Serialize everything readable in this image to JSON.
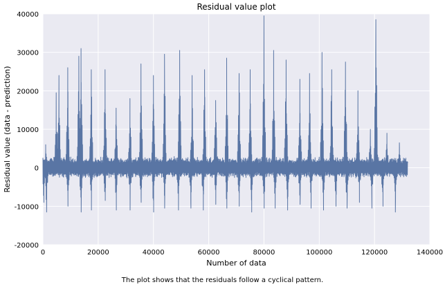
{
  "chart_data": {
    "type": "line",
    "title": "Residual value plot",
    "xlabel": "Number of data",
    "ylabel": "Residual value (data - prediction)",
    "xlim": [
      0,
      140000
    ],
    "ylim": [
      -20000,
      40000
    ],
    "xticks": [
      0,
      20000,
      40000,
      60000,
      80000,
      100000,
      120000,
      140000
    ],
    "yticks": [
      -20000,
      -10000,
      0,
      10000,
      20000,
      30000,
      40000
    ],
    "grid": true,
    "line_color": "#5975a4",
    "background_color": "#eaeaf2",
    "n_points": 132000,
    "peaks": [
      {
        "x": 1000,
        "y": 6000
      },
      {
        "x": 4800,
        "y": 19500
      },
      {
        "x": 5800,
        "y": 24000
      },
      {
        "x": 9000,
        "y": 26000
      },
      {
        "x": 13000,
        "y": 29000
      },
      {
        "x": 13800,
        "y": 31000
      },
      {
        "x": 17500,
        "y": 25500
      },
      {
        "x": 22500,
        "y": 25500
      },
      {
        "x": 26500,
        "y": 15500
      },
      {
        "x": 31500,
        "y": 18000
      },
      {
        "x": 35500,
        "y": 27000
      },
      {
        "x": 40000,
        "y": 24000
      },
      {
        "x": 44000,
        "y": 29500
      },
      {
        "x": 49500,
        "y": 30500
      },
      {
        "x": 54000,
        "y": 24000
      },
      {
        "x": 58500,
        "y": 25500
      },
      {
        "x": 62500,
        "y": 17500
      },
      {
        "x": 66500,
        "y": 28500
      },
      {
        "x": 71000,
        "y": 24500
      },
      {
        "x": 75000,
        "y": 25500
      },
      {
        "x": 80000,
        "y": 39500
      },
      {
        "x": 83500,
        "y": 30500
      },
      {
        "x": 88000,
        "y": 28000
      },
      {
        "x": 93000,
        "y": 23000
      },
      {
        "x": 96500,
        "y": 24500
      },
      {
        "x": 101000,
        "y": 30000
      },
      {
        "x": 104500,
        "y": 25500
      },
      {
        "x": 109500,
        "y": 27500
      },
      {
        "x": 114000,
        "y": 20000
      },
      {
        "x": 118500,
        "y": 10000
      },
      {
        "x": 120500,
        "y": 38500
      },
      {
        "x": 124500,
        "y": 9000
      },
      {
        "x": 129000,
        "y": 6500
      }
    ],
    "troughs": [
      {
        "x": 300,
        "y": -9000
      },
      {
        "x": 1300,
        "y": -11500
      },
      {
        "x": 9000,
        "y": -10000
      },
      {
        "x": 13800,
        "y": -11500
      },
      {
        "x": 17500,
        "y": -11000
      },
      {
        "x": 22500,
        "y": -8500
      },
      {
        "x": 26500,
        "y": -11000
      },
      {
        "x": 31500,
        "y": -11000
      },
      {
        "x": 35500,
        "y": -9000
      },
      {
        "x": 40000,
        "y": -11500
      },
      {
        "x": 44000,
        "y": -10500
      },
      {
        "x": 49000,
        "y": -11000
      },
      {
        "x": 53500,
        "y": -10500
      },
      {
        "x": 58000,
        "y": -11000
      },
      {
        "x": 62500,
        "y": -9500
      },
      {
        "x": 66500,
        "y": -10500
      },
      {
        "x": 71000,
        "y": -10000
      },
      {
        "x": 75500,
        "y": -11500
      },
      {
        "x": 80000,
        "y": -10500
      },
      {
        "x": 84000,
        "y": -10500
      },
      {
        "x": 88500,
        "y": -11000
      },
      {
        "x": 93000,
        "y": -9500
      },
      {
        "x": 97000,
        "y": -10500
      },
      {
        "x": 101500,
        "y": -11000
      },
      {
        "x": 106000,
        "y": -10000
      },
      {
        "x": 110000,
        "y": -10500
      },
      {
        "x": 114500,
        "y": -9000
      },
      {
        "x": 119000,
        "y": -10500
      },
      {
        "x": 123000,
        "y": -10000
      },
      {
        "x": 127500,
        "y": -11500
      }
    ]
  },
  "caption": "The plot shows that the residuals follow a cyclical pattern."
}
